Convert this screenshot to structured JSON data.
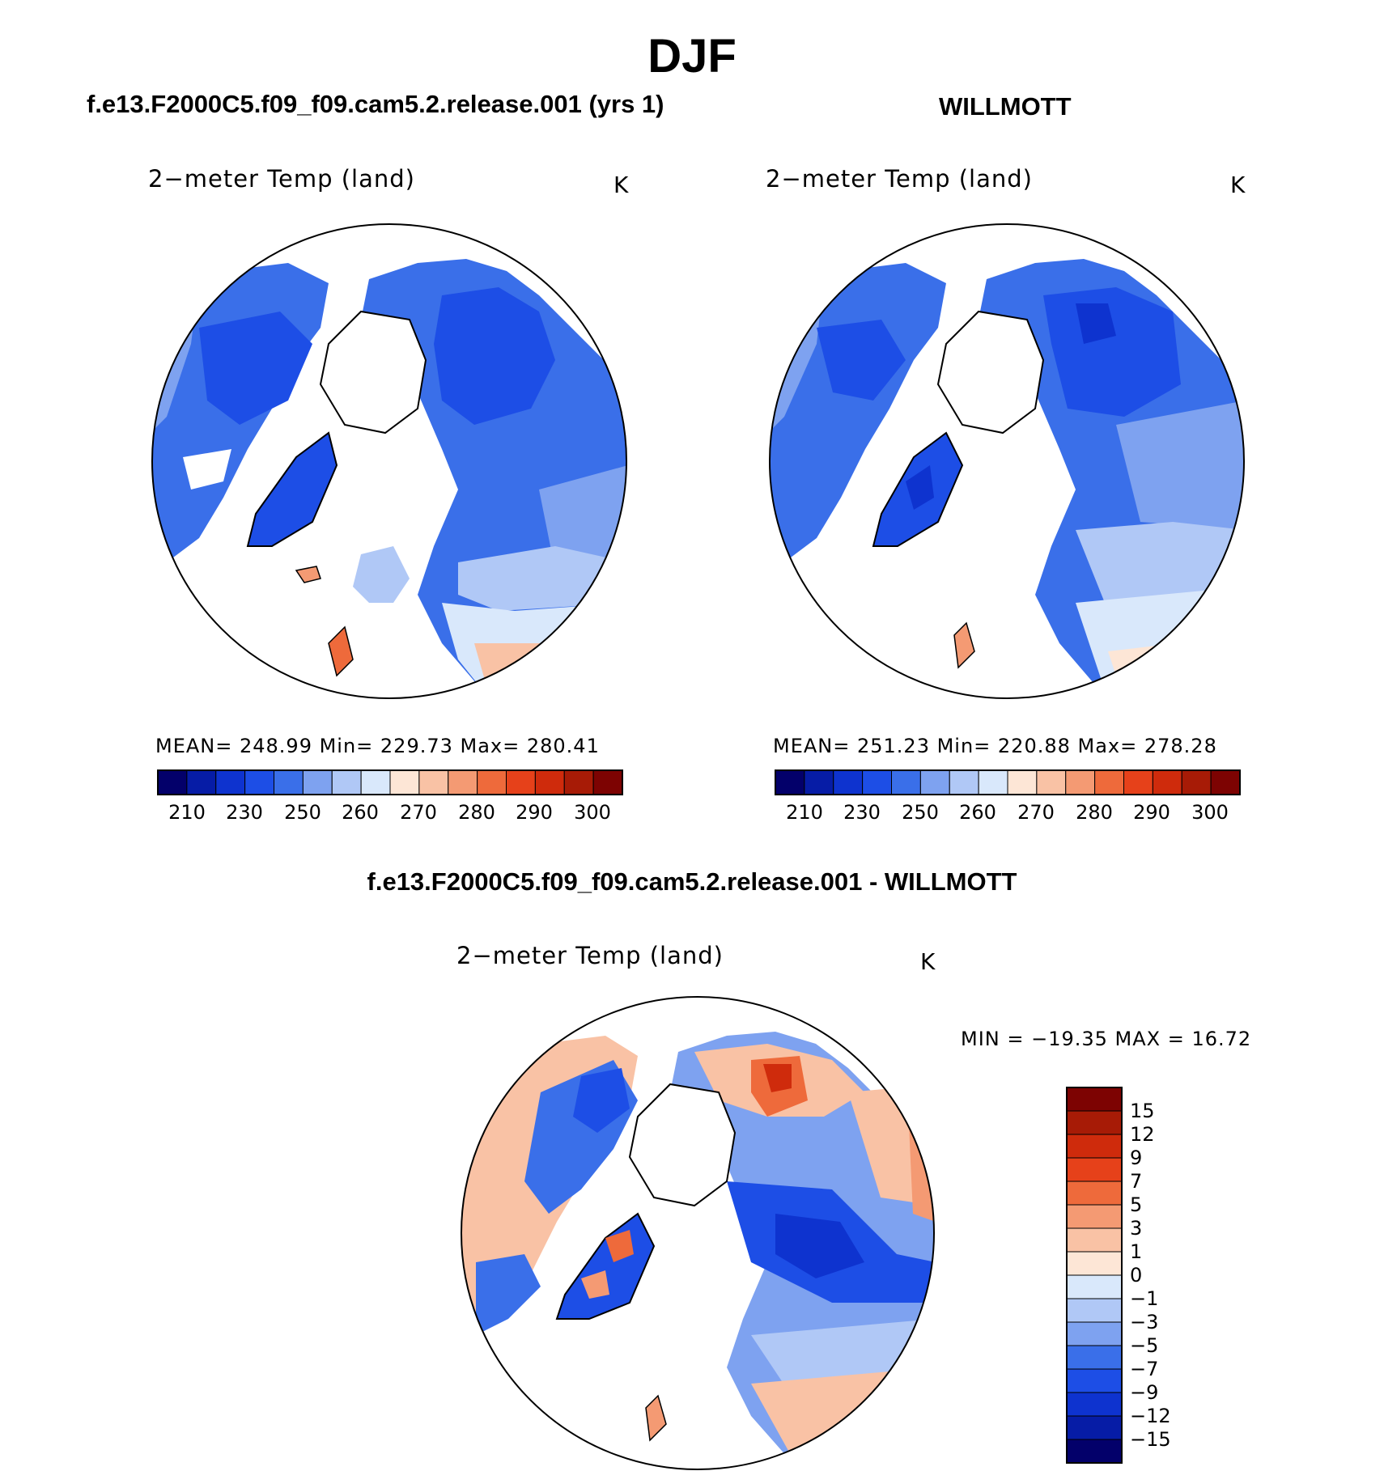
{
  "figure": {
    "title": "DJF",
    "colors": {
      "abs_palette": [
        "#03006a",
        "#061ca6",
        "#0e33cf",
        "#1d4ee6",
        "#3a6fe9",
        "#7ea2f0",
        "#b0c8f6",
        "#d9e8fb",
        "#fde6d6",
        "#f9c2a5",
        "#f49a73",
        "#ee6a3b",
        "#e6411a",
        "#cf2b0c",
        "#a71b06",
        "#7d0302"
      ],
      "diff_palette": [
        "#03006a",
        "#061ca6",
        "#0e33cf",
        "#1d4ee6",
        "#3a6fe9",
        "#7ea2f0",
        "#b0c8f6",
        "#d9e8fb",
        "#fde6d6",
        "#f9c2a5",
        "#f49a73",
        "#ee6a3b",
        "#e6411a",
        "#cf2b0c",
        "#a71b06",
        "#7d0302"
      ]
    }
  },
  "panels": [
    {
      "title": "f.e13.F2000C5.f09_f09.cam5.2.release.001 (yrs 1)",
      "variable": "2−meter Temp (land)",
      "units": "K",
      "stats_text": "MEAN=  248.99    Min=  229.73    Max=  280.41",
      "mean": 248.99,
      "min": 229.73,
      "max": 280.41,
      "colorbar_ticks": [
        "210",
        "230",
        "250",
        "260",
        "270",
        "280",
        "290",
        "300"
      ]
    },
    {
      "title": "WILLMOTT",
      "variable": "2−meter Temp (land)",
      "units": "K",
      "stats_text": "MEAN=  251.23    Min=  220.88    Max=  278.28",
      "mean": 251.23,
      "min": 220.88,
      "max": 278.28,
      "colorbar_ticks": [
        "210",
        "230",
        "250",
        "260",
        "270",
        "280",
        "290",
        "300"
      ]
    }
  ],
  "difference": {
    "title": "f.e13.F2000C5.f09_f09.cam5.2.release.001 - WILLMOTT",
    "variable": "2−meter Temp (land)",
    "units": "K",
    "minmax_text": "MIN  =  −19.35  MAX  =     16.72",
    "min": -19.35,
    "max": 16.72,
    "colorbar_ticks": [
      "15",
      "12",
      "9",
      "7",
      "5",
      "3",
      "1",
      "0",
      "−1",
      "−3",
      "−5",
      "−7",
      "−9",
      "−12",
      "−15"
    ]
  }
}
